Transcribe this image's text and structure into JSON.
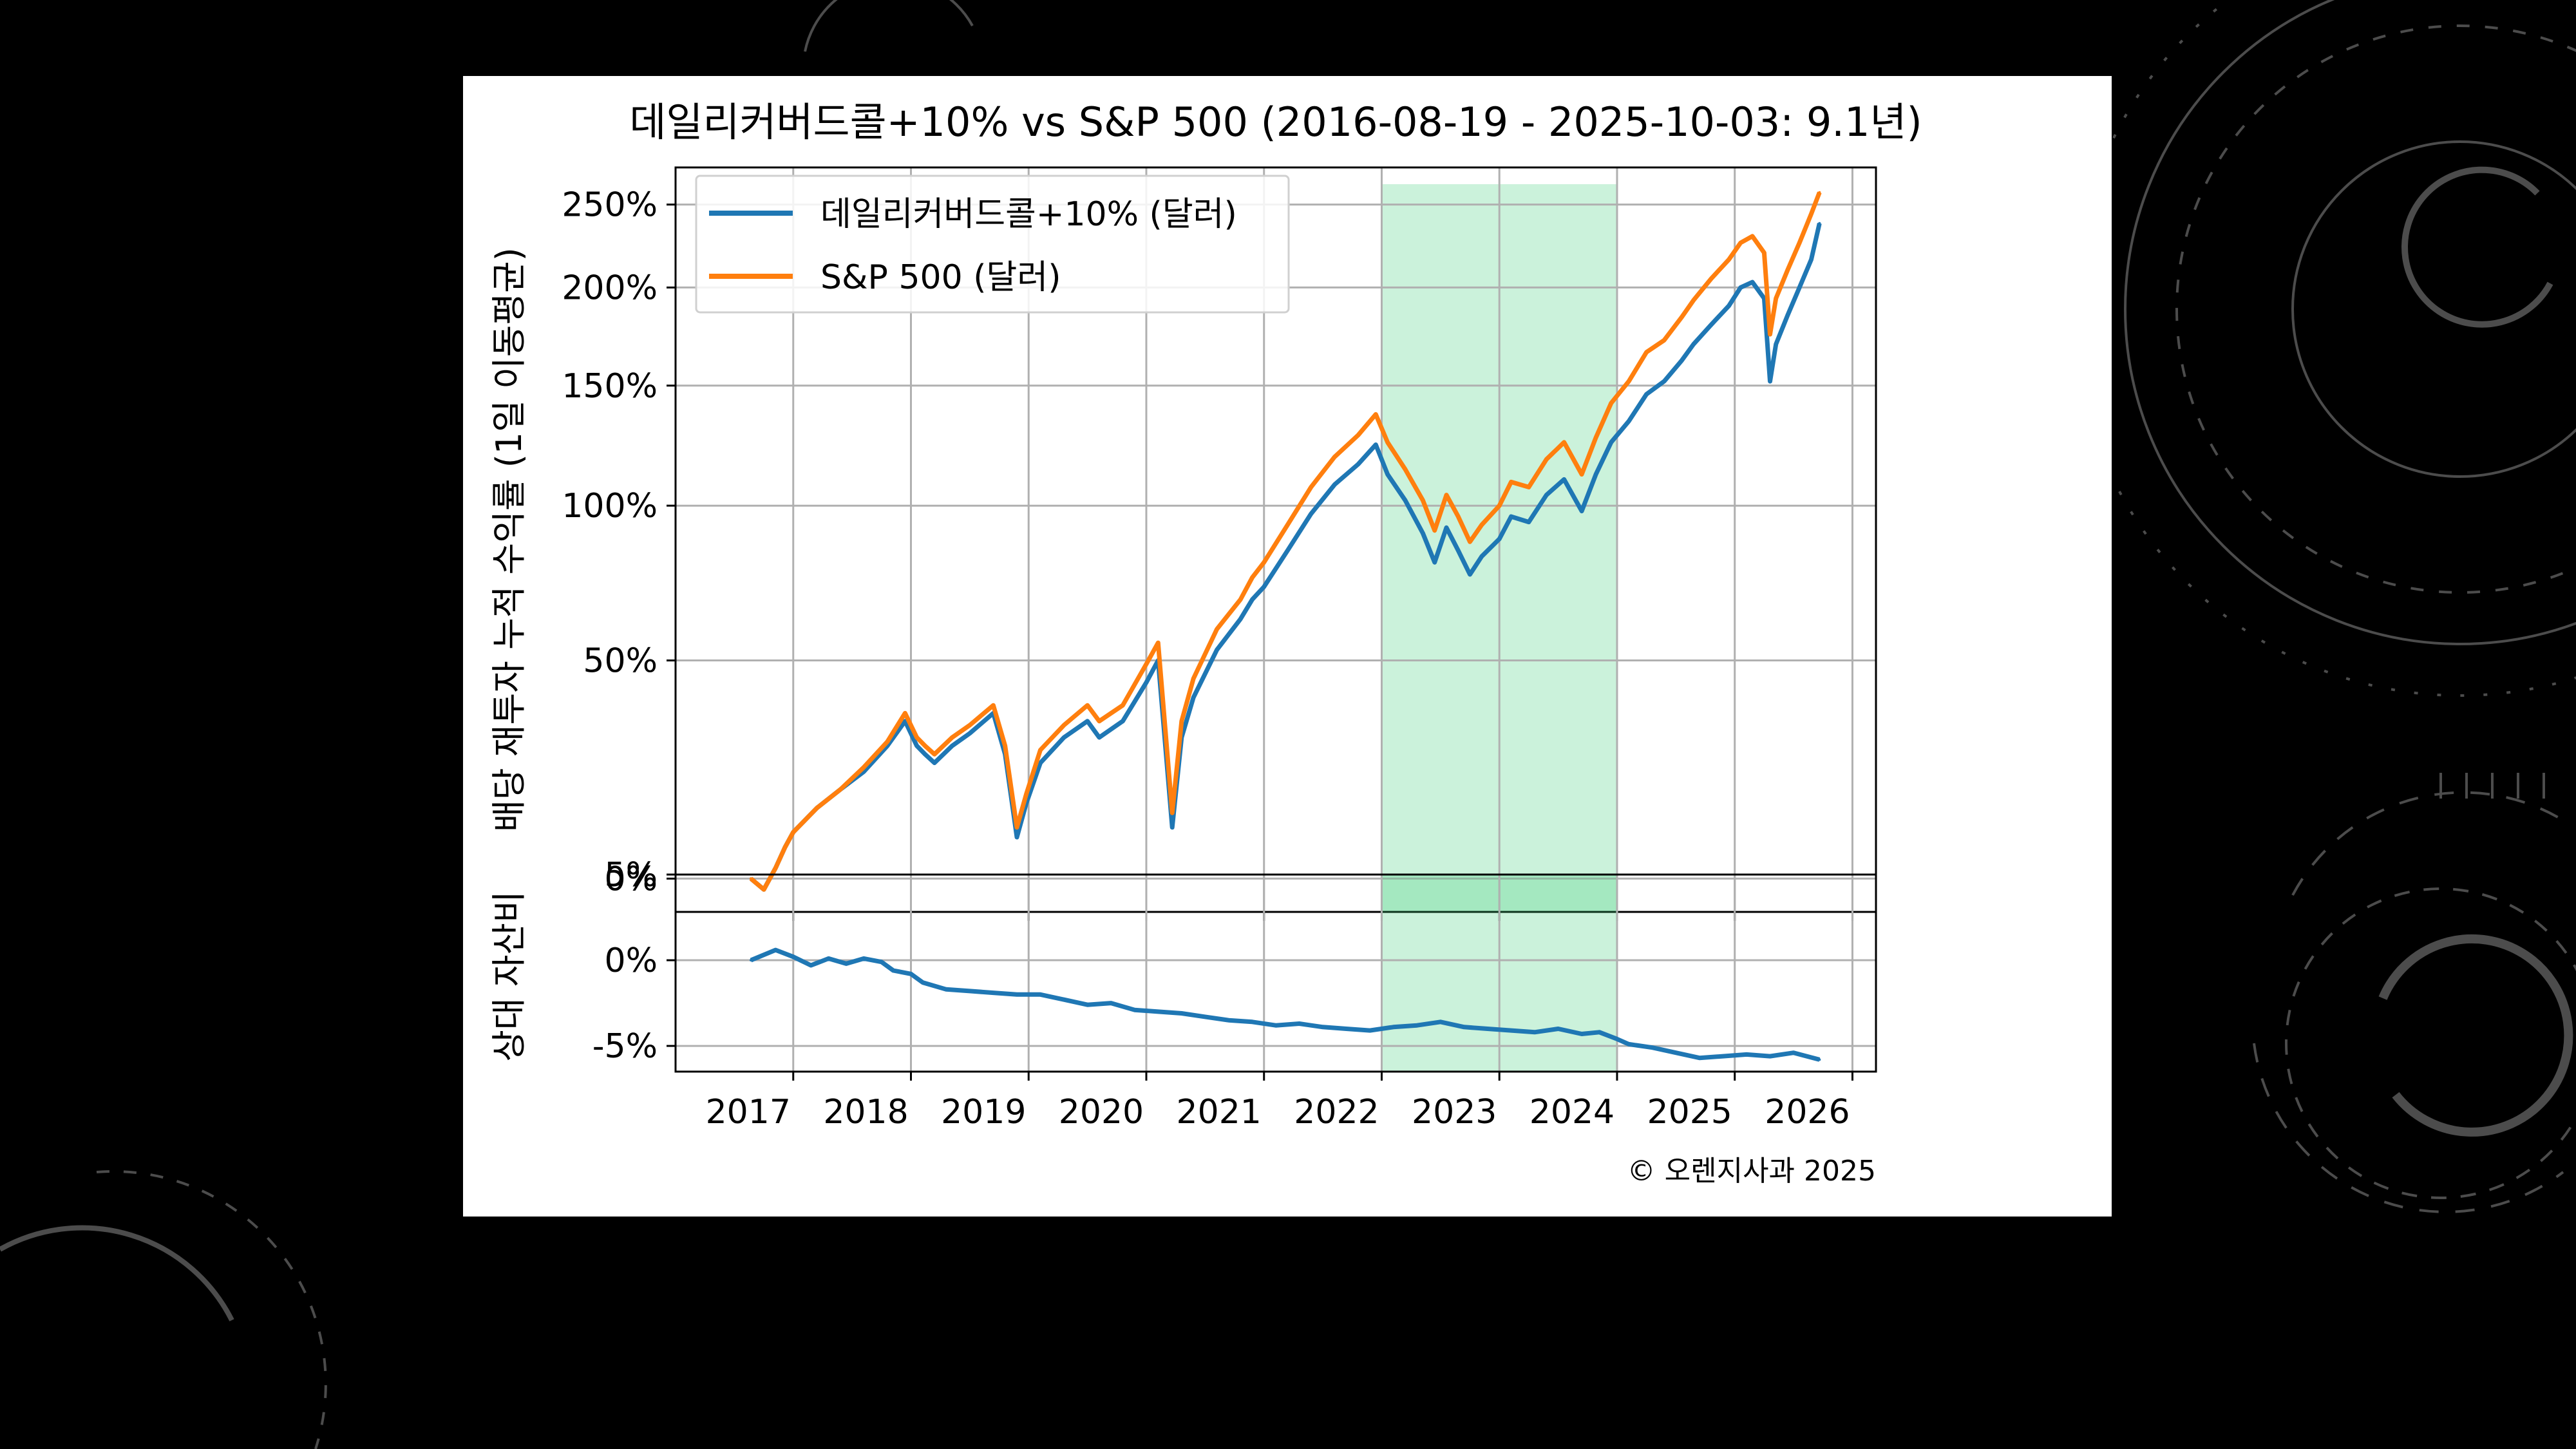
{
  "chart_data": [
    {
      "type": "line",
      "title": "데일리커버드콜+10% vs S&P 500 (2016-08-19 - 2025-10-03: 9.1년)",
      "ylabel": "배당 재투자 누적 수익률 (1일 이동평균)",
      "xlabel": "",
      "yscale": "log(1+r)",
      "ylim": [
        -6,
        275
      ],
      "yticks": [
        0,
        50,
        100,
        150,
        200,
        250
      ],
      "ytick_labels": [
        "0%",
        "50%",
        "100%",
        "150%",
        "200%",
        "250%"
      ],
      "xlim": [
        2016.0,
        2026.2
      ],
      "xticks": [
        2017,
        2018,
        2019,
        2020,
        2021,
        2022,
        2023,
        2024,
        2025,
        2026
      ],
      "xtick_labels": [
        "2017",
        "2018",
        "2019",
        "2020",
        "2021",
        "2022",
        "2023",
        "2024",
        "2025",
        "2026"
      ],
      "legend_position": "top-left",
      "grid": true,
      "shaded_region": {
        "x_start": 2022.0,
        "x_end": 2024.0,
        "color": "#2ecc71"
      },
      "x": [
        2016.64,
        2016.75,
        2016.85,
        2016.93,
        2017.0,
        2017.2,
        2017.4,
        2017.6,
        2017.8,
        2017.95,
        2018.05,
        2018.12,
        2018.2,
        2018.35,
        2018.5,
        2018.7,
        2018.8,
        2018.9,
        2018.98,
        2019.1,
        2019.3,
        2019.5,
        2019.6,
        2019.8,
        2020.0,
        2020.1,
        2020.15,
        2020.22,
        2020.3,
        2020.4,
        2020.6,
        2020.8,
        2020.9,
        2021.0,
        2021.2,
        2021.4,
        2021.6,
        2021.8,
        2021.95,
        2022.05,
        2022.2,
        2022.35,
        2022.45,
        2022.55,
        2022.65,
        2022.75,
        2022.85,
        2023.0,
        2023.1,
        2023.25,
        2023.4,
        2023.55,
        2023.7,
        2023.82,
        2023.95,
        2024.1,
        2024.25,
        2024.4,
        2024.55,
        2024.65,
        2024.8,
        2024.95,
        2025.05,
        2025.15,
        2025.25,
        2025.3,
        2025.35,
        2025.45,
        2025.55,
        2025.65,
        2025.72
      ],
      "series": [
        {
          "name": "데일리커버드콜+10% (달러)",
          "color": "#1f77b4",
          "values": [
            0,
            -2,
            2,
            6,
            9,
            14,
            18,
            22,
            28,
            34,
            28,
            26,
            24,
            28,
            31,
            36,
            26,
            8,
            15,
            24,
            30,
            34,
            30,
            34,
            44,
            50,
            32,
            10,
            30,
            40,
            53,
            62,
            68,
            72,
            84,
            97,
            108,
            116,
            124,
            112,
            102,
            90,
            80,
            92,
            84,
            76,
            82,
            88,
            96,
            94,
            104,
            110,
            98,
            112,
            125,
            134,
            146,
            152,
            162,
            170,
            180,
            190,
            200,
            203,
            194,
            152,
            170,
            185,
            200,
            216,
            238
          ]
        },
        {
          "name": "S&P 500 (달러)",
          "color": "#ff7f0e",
          "values": [
            0,
            -2,
            2,
            6,
            9,
            14,
            18,
            23,
            29,
            36,
            30,
            28,
            26,
            30,
            33,
            38,
            28,
            10,
            17,
            27,
            33,
            38,
            34,
            38,
            49,
            55,
            36,
            13,
            34,
            45,
            59,
            68,
            75,
            80,
            93,
            107,
            119,
            128,
            137,
            125,
            114,
            102,
            91,
            104,
            96,
            87,
            93,
            100,
            109,
            107,
            118,
            125,
            112,
            127,
            142,
            152,
            166,
            172,
            184,
            193,
            205,
            216,
            226,
            230,
            220,
            175,
            194,
            210,
            226,
            244,
            258
          ]
        }
      ]
    },
    {
      "type": "line",
      "title": "",
      "ylabel": "상대 자산비",
      "xlabel": "",
      "ylim": [
        -6.5,
        5
      ],
      "yticks": [
        5,
        0,
        -5
      ],
      "ytick_labels": [
        "5%",
        "0%",
        "-5%"
      ],
      "xlim": [
        2016.0,
        2026.2
      ],
      "xticks": [
        2017,
        2018,
        2019,
        2020,
        2021,
        2022,
        2023,
        2024,
        2025,
        2026
      ],
      "xtick_labels": [
        "2017",
        "2018",
        "2019",
        "2020",
        "2021",
        "2022",
        "2023",
        "2024",
        "2025",
        "2026"
      ],
      "grid": true,
      "shaded_region": {
        "x_start": 2022.0,
        "x_end": 2024.0,
        "color": "#2ecc71"
      },
      "x": [
        2016.64,
        2016.85,
        2017.0,
        2017.15,
        2017.3,
        2017.45,
        2017.6,
        2017.75,
        2017.85,
        2018.0,
        2018.1,
        2018.3,
        2018.5,
        2018.7,
        2018.9,
        2019.1,
        2019.3,
        2019.5,
        2019.7,
        2019.9,
        2020.1,
        2020.3,
        2020.5,
        2020.7,
        2020.9,
        2021.1,
        2021.3,
        2021.5,
        2021.7,
        2021.9,
        2022.1,
        2022.3,
        2022.5,
        2022.7,
        2022.9,
        2023.1,
        2023.3,
        2023.5,
        2023.7,
        2023.85,
        2024.0,
        2024.1,
        2024.3,
        2024.5,
        2024.7,
        2024.9,
        2025.1,
        2025.3,
        2025.5,
        2025.72
      ],
      "series": [
        {
          "name": "상대 자산비",
          "color": "#1f77b4",
          "values": [
            0,
            0.6,
            0.2,
            -0.3,
            0.1,
            -0.2,
            0.1,
            -0.1,
            -0.6,
            -0.8,
            -1.3,
            -1.7,
            -1.8,
            -1.9,
            -2.0,
            -2.0,
            -2.3,
            -2.6,
            -2.5,
            -2.9,
            -3.0,
            -3.1,
            -3.3,
            -3.5,
            -3.6,
            -3.8,
            -3.7,
            -3.9,
            -4.0,
            -4.1,
            -3.9,
            -3.8,
            -3.6,
            -3.9,
            -4.0,
            -4.1,
            -4.2,
            -4.0,
            -4.3,
            -4.2,
            -4.6,
            -4.9,
            -5.1,
            -5.4,
            -5.7,
            -5.6,
            -5.5,
            -5.6,
            -5.4,
            -5.8
          ]
        }
      ]
    }
  ],
  "copyright": "© 오렌지사과 2025"
}
